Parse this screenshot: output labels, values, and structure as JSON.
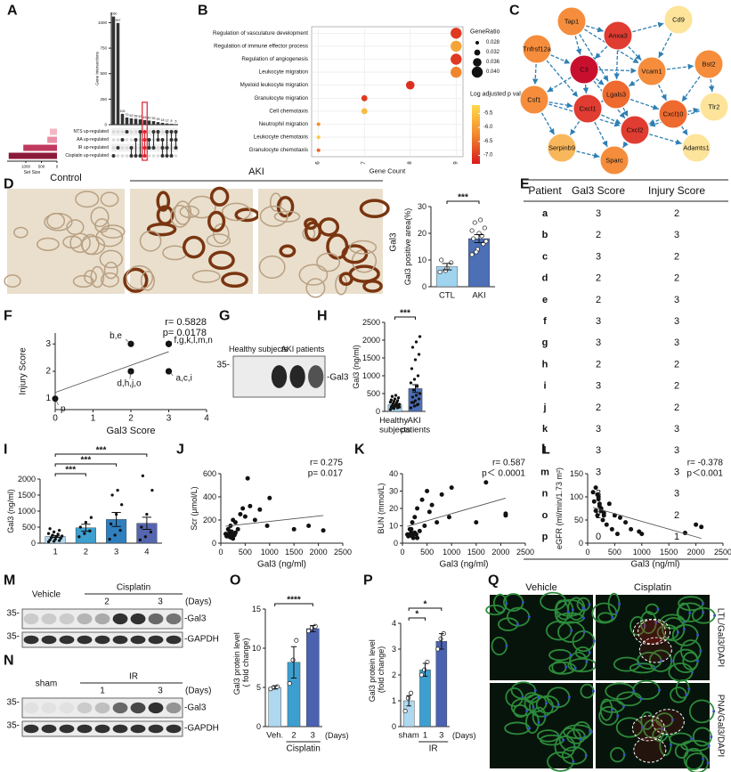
{
  "figure": {
    "letters": [
      "A",
      "B",
      "C",
      "D",
      "E",
      "F",
      "G",
      "H",
      "I",
      "J",
      "K",
      "L",
      "M",
      "N",
      "O",
      "P",
      "Q"
    ],
    "network": {
      "nodes": [
        "Tap1",
        "Anxa3",
        "Cd9",
        "Tnfrsf12a",
        "C3",
        "Vcam1",
        "Bst2",
        "Lgals3",
        "Csf1",
        "Cxcl1",
        "Cxcl10",
        "Tlr2",
        "Cxcl2",
        "Serpinb9",
        "Sparc",
        "Adamts1"
      ]
    },
    "panel_d": {
      "control": "Control",
      "aki": "AKI",
      "stain": "Gal3"
    },
    "table": {
      "header": [
        "Patient",
        "Gal3 Score",
        "Injury Score"
      ],
      "rows": [
        [
          "a",
          3,
          2
        ],
        [
          "b",
          2,
          3
        ],
        [
          "c",
          3,
          2
        ],
        [
          "d",
          2,
          2
        ],
        [
          "e",
          2,
          3
        ],
        [
          "f",
          3,
          3
        ],
        [
          "g",
          3,
          3
        ],
        [
          "h",
          2,
          2
        ],
        [
          "i",
          3,
          2
        ],
        [
          "j",
          2,
          2
        ],
        [
          "k",
          3,
          3
        ],
        [
          "l",
          3,
          3
        ],
        [
          "m",
          3,
          3
        ],
        [
          "n",
          3,
          3
        ],
        [
          "o",
          2,
          2
        ],
        [
          "p",
          0,
          1
        ]
      ]
    },
    "blot_g": {
      "groups": [
        "Healthy subjects",
        "AKI patients"
      ],
      "marker": "35-",
      "band": "-Gal3"
    },
    "blot_m": {
      "groups": [
        "Vehicle",
        "Cisplatin"
      ],
      "days": [
        "2",
        "3"
      ],
      "unit": "(Days)",
      "markers": [
        "35-",
        "35-"
      ],
      "bands": [
        "-Gal3",
        "-GAPDH"
      ]
    },
    "blot_n": {
      "groups": [
        "sham",
        "IR"
      ],
      "days": [
        "1",
        "3"
      ],
      "unit": "(Days)",
      "markers": [
        "35-",
        "35-"
      ],
      "bands": [
        "-Gal3",
        "-GAPDH"
      ]
    },
    "panel_q": {
      "columns": [
        "Vehicle",
        "Cisplatin"
      ],
      "rows": [
        "LTL/Gal3/DAPI",
        "PNA/Gal3/DAPI"
      ]
    }
  },
  "chart_data": [
    {
      "type": "upset",
      "ylabel": "Gene Intersections",
      "ylim": [
        0,
        1100
      ],
      "yticks": [
        0,
        250,
        500,
        750,
        1000
      ],
      "values": [
        1060,
        997,
        106,
        70,
        62,
        58,
        52,
        45,
        40,
        35,
        25,
        18,
        12,
        8,
        5
      ],
      "matrix": [
        [
          3
        ],
        [
          2
        ],
        [
          1
        ],
        [
          0
        ],
        [
          2,
          3
        ],
        [
          1,
          3
        ],
        [
          0,
          3
        ],
        [
          0,
          1,
          2,
          3
        ],
        [
          1,
          2
        ],
        [
          0,
          2
        ],
        [
          0,
          1
        ],
        [
          1,
          2,
          3
        ],
        [
          0,
          2,
          3
        ],
        [
          0,
          1,
          3
        ],
        [
          0,
          1,
          2
        ]
      ],
      "highlight": 7,
      "highlight_color": "#e0202a",
      "sets": {
        "names": [
          "NTS up-regulated",
          "AA up-regulated",
          "IR up-regulated",
          "Cisplatin up-regulated"
        ],
        "sizes": [
          230,
          310,
          1080,
          1550
        ],
        "colors": [
          "#f4b6c2",
          "#e890a5",
          "#c0395e",
          "#8b1a3a"
        ]
      },
      "set_xlabel": "Set Size",
      "set_xlim": [
        1600,
        0
      ],
      "set_xticks": [
        1000,
        500,
        0
      ],
      "color": "#333333"
    },
    {
      "type": "dot",
      "xlabel": "Gene Count",
      "xlim": [
        5.85,
        9.15
      ],
      "xticks": [
        6,
        7,
        8,
        9
      ],
      "categories": [
        "Regulation of vasculature development",
        "Regulation of immune effector process",
        "Regulation of angiogenesis",
        "Leukocyte migration",
        "Myeloid leukocyte migration",
        "Granulocyte migration",
        "Cell chemotaxis",
        "Neutrophil migration",
        "Leukocyte chemotaxis",
        "Granulocyte chemotaxis"
      ],
      "values": [
        9,
        9,
        9,
        9,
        8,
        7,
        7,
        6,
        6,
        6
      ],
      "sizes": [
        0.04,
        0.04,
        0.04,
        0.04,
        0.036,
        0.032,
        0.032,
        0.028,
        0.028,
        0.028
      ],
      "pvalues": [
        -7.0,
        -5.9,
        -7.0,
        -6.3,
        -7.1,
        -7.0,
        -5.6,
        -6.2,
        -5.4,
        -6.6
      ],
      "size_title": "GeneRatio",
      "size_ticks": [
        0.028,
        0.032,
        0.036,
        {
          "value": 0.04,
          "label": "0.040"
        }
      ],
      "color_title": "Log adjusted p value",
      "clim": [
        -7.3,
        -5.2
      ],
      "cticks": [
        {
          "value": -5.5,
          "label": "-5.5"
        },
        {
          "value": -6,
          "label": "-6.0"
        },
        {
          "value": -6.5,
          "label": "-6.5"
        },
        {
          "value": -7,
          "label": "-7.0"
        }
      ],
      "colormap": [
        "#d7191c",
        "#f28a2e",
        "#ffd94a"
      ]
    },
    {
      "type": "bar",
      "ylabel": "Gal3 positive area(%)",
      "ylim": [
        0,
        30
      ],
      "yticks": [
        0,
        10,
        20,
        30
      ],
      "categories": [
        "CTL",
        "AKI"
      ],
      "values": [
        7.5,
        18
      ],
      "errors": [
        1.2,
        1.5
      ],
      "colors": [
        "#9fd3ee",
        "#4c6fb6"
      ],
      "dots": [
        [
          5.5,
          6,
          9,
          10,
          7
        ],
        [
          12,
          14,
          16,
          18,
          20,
          22,
          24,
          25,
          17,
          13,
          19,
          21
        ]
      ],
      "dot_fill": "#ffffff",
      "brackets": [
        {
          "between": [
            0,
            1
          ],
          "label": "***"
        }
      ]
    },
    {
      "type": "scatter",
      "xlabel": "Gal3 Score",
      "ylabel": "Injury Score",
      "xlim": [
        0,
        4
      ],
      "xticks": [
        0,
        1,
        2,
        3,
        4
      ],
      "ylim": [
        0.6,
        3.4
      ],
      "yticks": [
        1,
        2,
        3
      ],
      "x": [
        3,
        2,
        3,
        2,
        2,
        3,
        3,
        2,
        3,
        2,
        3,
        3,
        3,
        3,
        2,
        0
      ],
      "values": [
        2,
        3,
        2,
        2,
        3,
        3,
        3,
        2,
        2,
        2,
        3,
        3,
        3,
        3,
        2,
        1
      ],
      "fit": true,
      "stats": [
        "r= 0.5828",
        "p= 0.0178"
      ],
      "labels": [
        "b,e",
        "f,g,k,l,m,n",
        "d,h,j,o",
        "a,c,i",
        "p"
      ],
      "color": "#111111"
    },
    {
      "type": "bar",
      "ylabel": "Gal3 (ng/ml)",
      "ylim": [
        0,
        2500
      ],
      "yticks": [
        0,
        500,
        1000,
        1500,
        2000,
        2500
      ],
      "categories": [
        "Healthy subjects",
        "AKI patients"
      ],
      "values": [
        190,
        640
      ],
      "errors": [
        25,
        110
      ],
      "colors": [
        "#9fd3ee",
        "#4c6fb6"
      ],
      "dots": [
        [
          50,
          80,
          100,
          120,
          140,
          150,
          160,
          180,
          200,
          220,
          240,
          260,
          280,
          300,
          320,
          350,
          380,
          420,
          450,
          120,
          90,
          170
        ],
        [
          100,
          150,
          200,
          250,
          300,
          350,
          400,
          450,
          500,
          600,
          700,
          800,
          900,
          1000,
          1200,
          1450,
          1600,
          1800,
          1950,
          2100,
          250,
          180
        ]
      ],
      "dot_fill": "#111111",
      "brackets": [
        {
          "between": [
            0,
            1
          ],
          "label": "***"
        }
      ]
    },
    {
      "type": "bar",
      "ylabel": "Gal3 (ng/ml)",
      "ylim": [
        0,
        2000
      ],
      "yticks": [
        0,
        500,
        1000,
        1500,
        2000
      ],
      "categories": [
        "1",
        "2",
        "3",
        "4"
      ],
      "values": [
        210,
        480,
        740,
        620
      ],
      "errors": [
        30,
        110,
        220,
        190
      ],
      "colors": [
        "#aed8ef",
        "#3d9fcf",
        "#2f7fbf",
        "#5566b0"
      ],
      "dots": [
        [
          40,
          60,
          80,
          100,
          120,
          150,
          170,
          200,
          220,
          250,
          280,
          300,
          350,
          400,
          450
        ],
        [
          200,
          300,
          380,
          500,
          650,
          800
        ],
        [
          120,
          250,
          400,
          600,
          900,
          1200,
          1500,
          1650
        ],
        [
          100,
          200,
          350,
          500,
          900,
          1650,
          2100
        ]
      ],
      "dot_fill": "#111111",
      "brackets": [
        {
          "between": [
            0,
            1
          ],
          "label": "***"
        },
        {
          "between": [
            0,
            2
          ],
          "label": "***"
        },
        {
          "between": [
            0,
            3
          ],
          "label": "***"
        }
      ]
    },
    {
      "type": "scatter",
      "xlabel": "Gal3 (ng/ml)",
      "ylabel": "Scr (μmol/L)",
      "xlim": [
        0,
        2500
      ],
      "xticks": [
        0,
        500,
        1000,
        1500,
        2000,
        2500
      ],
      "ylim": [
        0,
        600
      ],
      "yticks": [
        0,
        200,
        400,
        600
      ],
      "x": [
        100,
        120,
        150,
        180,
        200,
        220,
        250,
        280,
        300,
        350,
        400,
        450,
        500,
        550,
        600,
        700,
        800,
        950,
        1000,
        1500,
        1800,
        2100,
        150,
        200,
        250,
        300,
        180,
        220
      ],
      "values": [
        80,
        60,
        120,
        90,
        150,
        100,
        200,
        70,
        180,
        120,
        250,
        300,
        230,
        560,
        320,
        200,
        290,
        150,
        390,
        120,
        150,
        110,
        60,
        50,
        40,
        90,
        100,
        70
      ],
      "fit": true,
      "stats": [
        "r= 0.275",
        "p= 0.017"
      ],
      "color": "#111111"
    },
    {
      "type": "scatter",
      "xlabel": "Gal3 (ng/ml)",
      "ylabel": "BUN (mmol/L)",
      "xlim": [
        0,
        2500
      ],
      "xticks": [
        0,
        500,
        1000,
        1500,
        2000,
        2500
      ],
      "ylim": [
        0,
        40
      ],
      "yticks": [
        0,
        10,
        20,
        30,
        40
      ],
      "x": [
        100,
        120,
        150,
        180,
        200,
        220,
        250,
        280,
        300,
        350,
        400,
        450,
        500,
        550,
        600,
        700,
        800,
        950,
        1000,
        1500,
        1700,
        2100,
        2100,
        150,
        200,
        250,
        300,
        180
      ],
      "values": [
        5,
        4,
        8,
        6,
        12,
        3,
        15,
        5,
        20,
        7,
        25,
        10,
        30,
        18,
        22,
        12,
        28,
        15,
        32,
        12,
        35,
        17,
        16,
        5,
        4,
        6,
        3,
        8
      ],
      "fit": true,
      "stats": [
        "r= 0.587",
        "p＜ 0.0001"
      ],
      "color": "#111111"
    },
    {
      "type": "scatter",
      "xlabel": "Gal3 (ng/ml)",
      "ylabel": "eGFR (ml/min/1.73 m²)",
      "xlim": [
        0,
        2500
      ],
      "xticks": [
        0,
        500,
        1000,
        1500,
        2000,
        2500
      ],
      "ylim": [
        0,
        150
      ],
      "yticks": [
        0,
        50,
        100,
        150
      ],
      "x": [
        100,
        120,
        150,
        180,
        200,
        220,
        250,
        280,
        300,
        350,
        400,
        450,
        500,
        550,
        600,
        700,
        800,
        950,
        1000,
        1800,
        2000,
        2100,
        150,
        200,
        250,
        300,
        180,
        220
      ],
      "values": [
        110,
        90,
        70,
        60,
        100,
        80,
        75,
        50,
        65,
        40,
        85,
        30,
        60,
        20,
        55,
        45,
        30,
        25,
        20,
        22,
        40,
        35,
        120,
        95,
        70,
        60,
        105,
        85
      ],
      "fit": true,
      "stats": [
        "r= -0.378",
        "p＜0.001"
      ],
      "color": "#111111"
    },
    {
      "type": "bar",
      "ylabel": "Gal3 protein level ( fold change)",
      "ylim": [
        0,
        15
      ],
      "yticks": [
        0,
        5,
        10,
        15
      ],
      "categories": [
        "Veh.",
        "2",
        "3"
      ],
      "values": [
        5,
        8.2,
        12.5
      ],
      "errors": [
        0.2,
        2,
        0.4
      ],
      "colors": [
        "#aed8ef",
        "#3d9fcf",
        "#4a62b0"
      ],
      "dots": [
        [
          4.8,
          5,
          5.1
        ],
        [
          5.5,
          8.5,
          11
        ],
        [
          12.2,
          12.6,
          12.8
        ]
      ],
      "dot_fill": "#ffffff",
      "group": "Cisplatin",
      "unit": "(Days)",
      "brackets": [
        {
          "between": [
            0,
            2
          ],
          "label": "****"
        }
      ]
    },
    {
      "type": "bar",
      "ylabel": "Gal3 protein level (fold change)",
      "ylim": [
        0,
        4
      ],
      "yticks": [
        0,
        1,
        2,
        3,
        4
      ],
      "categories": [
        "sham",
        "1",
        "3"
      ],
      "values": [
        1,
        2.2,
        3.3
      ],
      "errors": [
        0.2,
        0.25,
        0.3
      ],
      "colors": [
        "#aed8ef",
        "#3d9fcf",
        "#4a62b0"
      ],
      "dots": [
        [
          0.6,
          1.1,
          1.3
        ],
        [
          2.0,
          2.2,
          2.5
        ],
        [
          3.0,
          3.4,
          3.6
        ]
      ],
      "dot_fill": "#ffffff",
      "group": "IR",
      "unit": "(Days)",
      "brackets": [
        {
          "between": [
            0,
            1
          ],
          "label": "*"
        },
        {
          "between": [
            0,
            2
          ],
          "label": "*"
        }
      ]
    }
  ]
}
